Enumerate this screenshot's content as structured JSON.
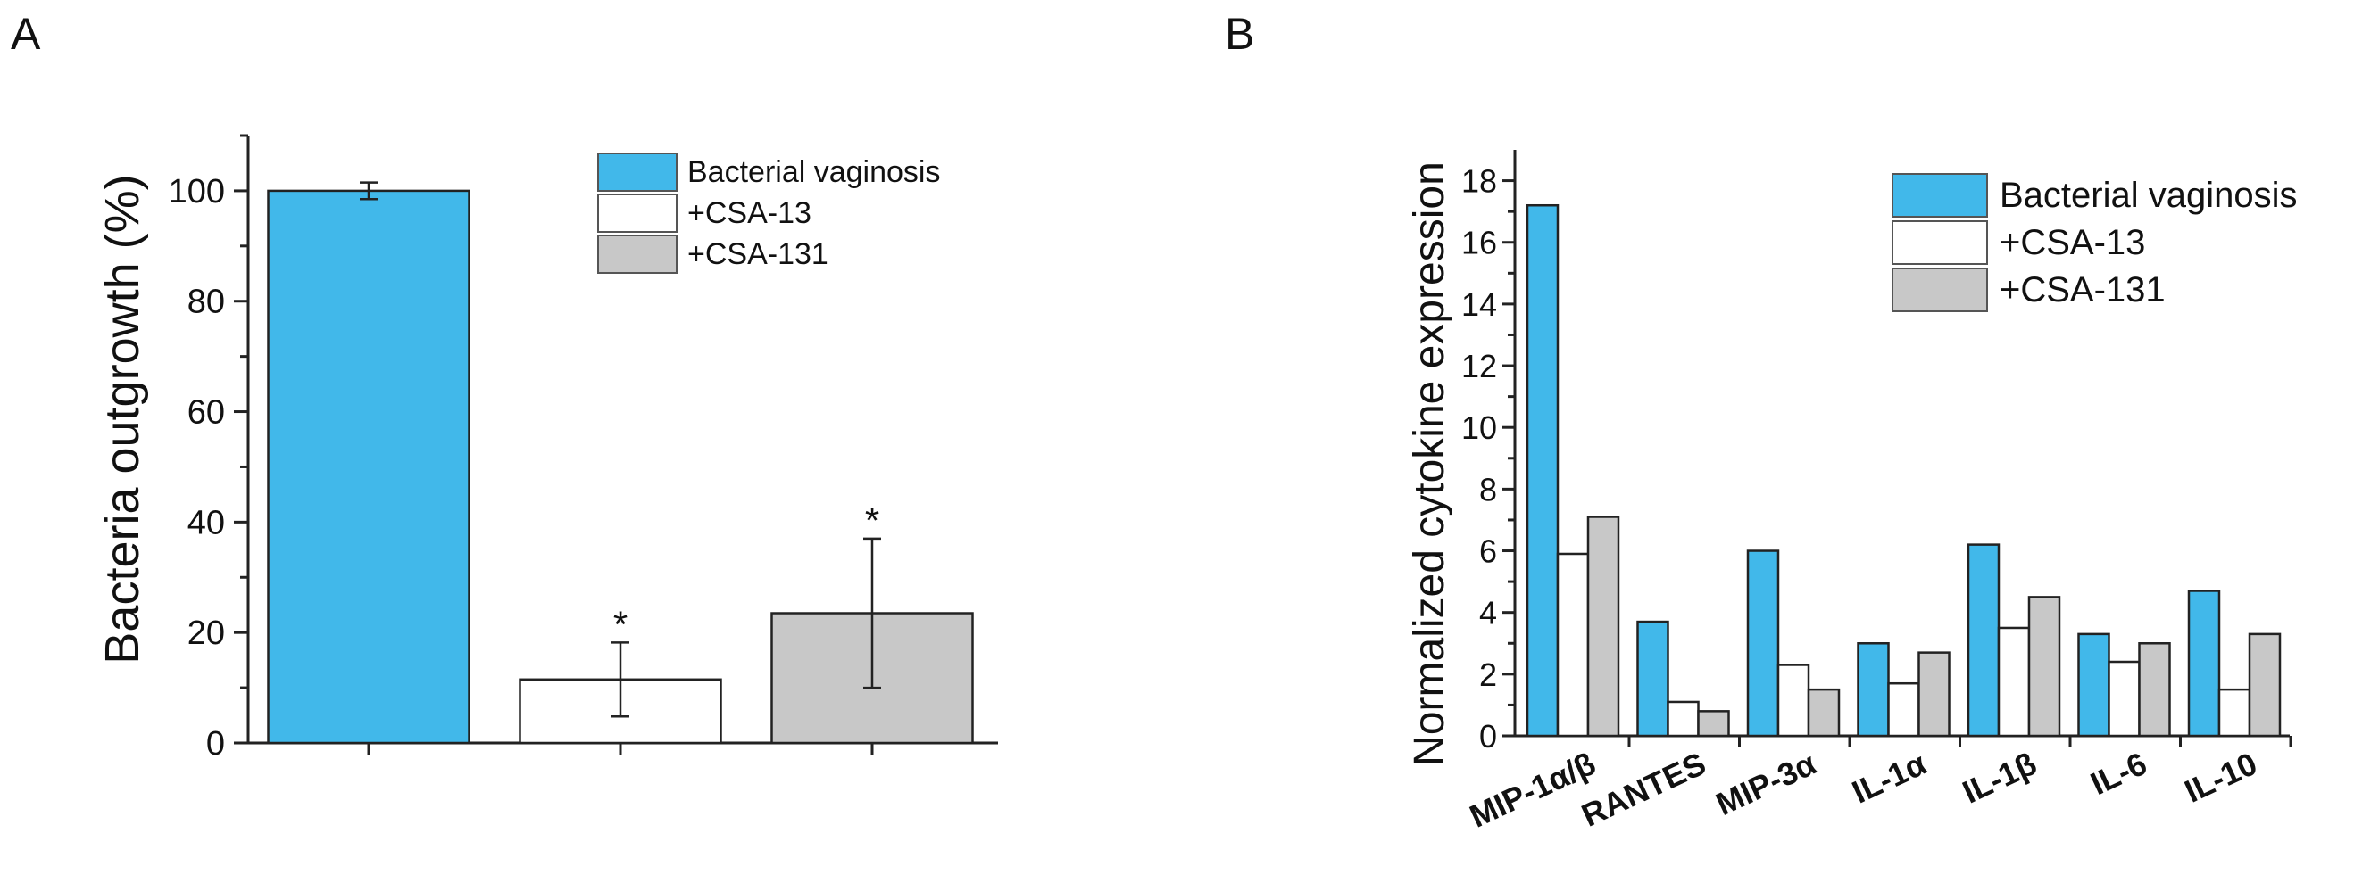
{
  "chart_data": [
    {
      "panel_label": "A",
      "type": "bar",
      "ylabel": "Bacteria outgrowth (%)",
      "xlabel": "",
      "ylim": [
        0,
        110
      ],
      "yticks": [
        0,
        20,
        40,
        60,
        80,
        100
      ],
      "series": [
        {
          "name": "Bacterial vaginosis",
          "value": 100,
          "error": 1.5,
          "significance": "",
          "color": "#41b8ea"
        },
        {
          "name": "+CSA-13",
          "value": 11.5,
          "error": 6.7,
          "significance": "*",
          "color": "#ffffff"
        },
        {
          "name": "+CSA-131",
          "value": 23.5,
          "error": 13.5,
          "significance": "*",
          "color": "#c8c8c8"
        }
      ],
      "legend_position": "top-right"
    },
    {
      "panel_label": "B",
      "type": "bar",
      "ylabel": "Normalized cytokine expression",
      "xlabel": "",
      "ylim": [
        0,
        19
      ],
      "yticks": [
        0,
        2,
        4,
        6,
        8,
        10,
        12,
        14,
        16,
        18
      ],
      "categories": [
        "MIP-1α/β",
        "RANTES",
        "MIP-3α",
        "IL-1α",
        "IL-1β",
        "IL-6",
        "IL-10"
      ],
      "series": [
        {
          "name": "Bacterial vaginosis",
          "color": "#41b8ea",
          "values": [
            17.2,
            3.7,
            6.0,
            3.0,
            6.2,
            3.3,
            4.7
          ]
        },
        {
          "name": "+CSA-13",
          "color": "#ffffff",
          "values": [
            5.9,
            1.1,
            2.3,
            1.7,
            3.5,
            2.4,
            1.5
          ]
        },
        {
          "name": "+CSA-131",
          "color": "#c8c8c8",
          "values": [
            7.1,
            0.8,
            1.5,
            2.7,
            4.5,
            3.0,
            3.3
          ]
        }
      ],
      "legend_position": "top-right"
    }
  ]
}
